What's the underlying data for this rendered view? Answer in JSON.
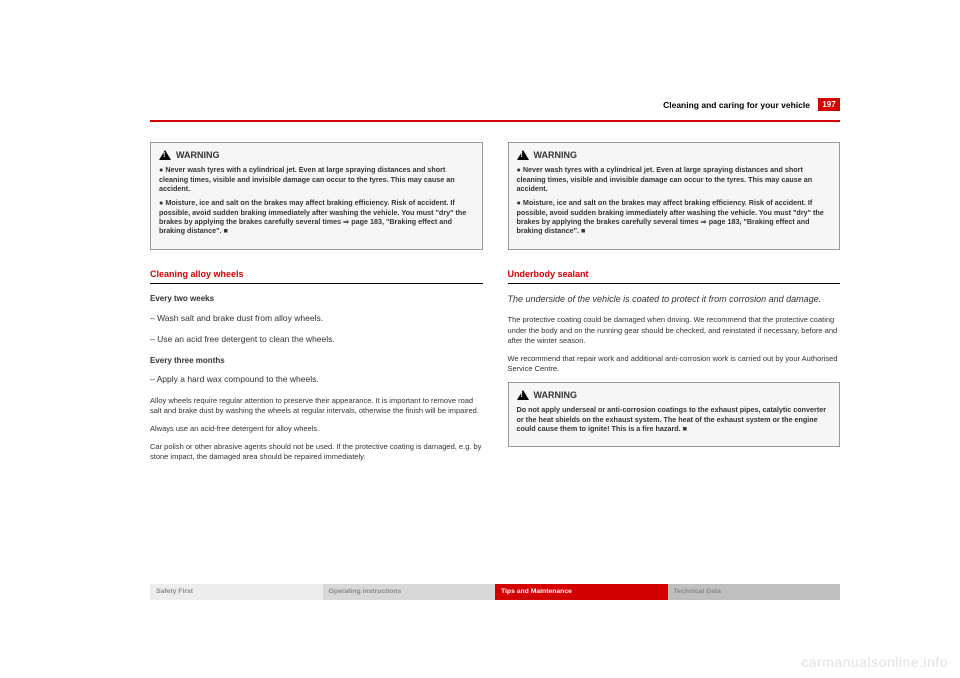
{
  "header": {
    "section_title": "Cleaning and caring for your vehicle",
    "page_number": "197"
  },
  "left": {
    "warning": {
      "label": "WARNING",
      "p1": "●   Never wash tyres with a cylindrical jet. Even at large spraying distances and short cleaning times, visible and invisible damage can occur to the tyres. This may cause an accident.",
      "p2": "●   Moisture, ice and salt on the brakes may affect braking efficiency. Risk of accident. If possible, avoid sudden braking immediately after washing the vehicle. You must \"dry\" the brakes by applying the brakes carefully several times ⇒ page 183, \"Braking effect and braking distance\". ■"
    },
    "subhead": "Cleaning alloy wheels",
    "every_two": "Every two weeks",
    "step1": "–   Wash salt and brake dust from alloy wheels.",
    "step2": "–   Use an acid free detergent to clean the wheels.",
    "every_three": "Every three months",
    "step3": "–   Apply a hard wax compound to the wheels.",
    "body1": "Alloy wheels require regular attention to preserve their appearance. It is important to remove road salt and brake dust by washing the wheels at regular intervals, otherwise the finish will be impaired.",
    "body2": "Always use an acid-free detergent for alloy wheels.",
    "body3": "Car polish or other abrasive agents should not be used. If the protective coating is damaged, e.g. by stone impact, the damaged area should be repaired immediately."
  },
  "right": {
    "warning": {
      "label": "WARNING",
      "p1": "●   Never wash tyres with a cylindrical jet. Even at large spraying distances and short cleaning times, visible and invisible damage can occur to the tyres. This may cause an accident.",
      "p2": "●   Moisture, ice and salt on the brakes may affect braking efficiency. Risk of accident. If possible, avoid sudden braking immediately after washing the vehicle. You must \"dry\" the brakes by applying the brakes carefully several times ⇒ page 183, \"Braking effect and braking distance\". ■"
    },
    "subhead": "Underbody sealant",
    "lead": "The underside of the vehicle is coated to protect it from corrosion and damage.",
    "body1": "The protective coating could be damaged when driving. We recommend that the protective coating under the body and on the running gear should be checked, and reinstated if necessary, before and after the winter season.",
    "body2": "We recommend that repair work and additional anti-corrosion work is carried out by your Authorised Service Centre.",
    "warning2": {
      "label": "WARNING",
      "p1": "Do not apply underseal or anti-corrosion coatings to the exhaust pipes, catalytic converter or the heat shields on the exhaust system. The heat of the exhaust system or the engine could cause them to ignite! This is a fire hazard. ■"
    }
  },
  "tabs": {
    "t1": "Safety First",
    "t2": "Operating instructions",
    "t3": "Tips and Maintenance",
    "t4": "Technical Data"
  },
  "watermark": "carmanualsonline.info"
}
